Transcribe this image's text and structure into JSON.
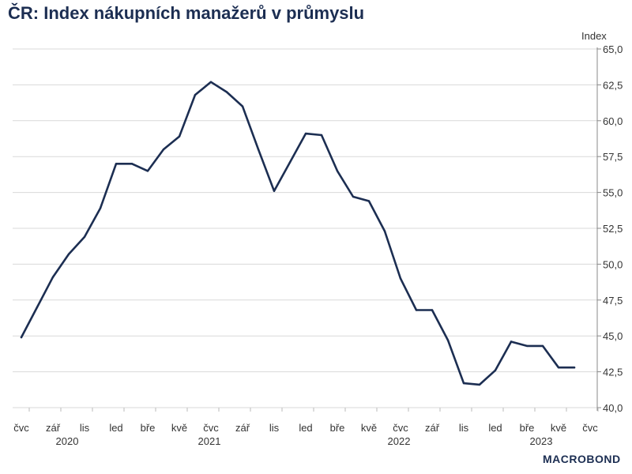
{
  "title": "ČR: Index nákupních manažerů v průmyslu",
  "unit_label": "Index",
  "brand": "MACROBOND",
  "chart_data": {
    "type": "line",
    "ylim": [
      40.0,
      65.0
    ],
    "yticks": [
      "40,0",
      "42,5",
      "45,0",
      "47,5",
      "50,0",
      "52,5",
      "55,0",
      "57,5",
      "60,0",
      "62,5",
      "65,0"
    ],
    "ytick_values": [
      40.0,
      42.5,
      45.0,
      47.5,
      50.0,
      52.5,
      55.0,
      57.5,
      60.0,
      62.5,
      65.0
    ],
    "x": [
      "2020-07",
      "2020-08",
      "2020-09",
      "2020-10",
      "2020-11",
      "2020-12",
      "2021-01",
      "2021-02",
      "2021-03",
      "2021-04",
      "2021-05",
      "2021-06",
      "2021-07",
      "2021-08",
      "2021-09",
      "2021-10",
      "2021-11",
      "2021-12",
      "2022-01",
      "2022-02",
      "2022-03",
      "2022-04",
      "2022-05",
      "2022-06",
      "2022-07",
      "2022-08",
      "2022-09",
      "2022-10",
      "2022-11",
      "2022-12",
      "2023-01",
      "2023-02",
      "2023-03",
      "2023-04",
      "2023-05",
      "2023-06"
    ],
    "values": [
      44.9,
      47.0,
      49.1,
      50.7,
      51.9,
      53.9,
      57.0,
      57.0,
      56.5,
      58.0,
      58.9,
      61.8,
      62.7,
      62.0,
      61.0,
      58.0,
      55.1,
      57.1,
      59.1,
      59.0,
      56.5,
      54.7,
      54.4,
      52.3,
      49.0,
      46.8,
      46.8,
      44.7,
      41.7,
      41.6,
      42.6,
      44.6,
      44.3,
      44.3,
      42.8,
      42.8
    ],
    "xticks": [
      {
        "label": "čvc",
        "month": "2020-07"
      },
      {
        "label": "zář",
        "month": "2020-09"
      },
      {
        "label": "lis",
        "month": "2020-11"
      },
      {
        "label": "led",
        "month": "2021-01"
      },
      {
        "label": "bře",
        "month": "2021-03"
      },
      {
        "label": "kvě",
        "month": "2021-05"
      },
      {
        "label": "čvc",
        "month": "2021-07"
      },
      {
        "label": "zář",
        "month": "2021-09"
      },
      {
        "label": "lis",
        "month": "2021-11"
      },
      {
        "label": "led",
        "month": "2022-01"
      },
      {
        "label": "bře",
        "month": "2022-03"
      },
      {
        "label": "kvě",
        "month": "2022-05"
      },
      {
        "label": "čvc",
        "month": "2022-07"
      },
      {
        "label": "zář",
        "month": "2022-09"
      },
      {
        "label": "lis",
        "month": "2022-11"
      },
      {
        "label": "led",
        "month": "2023-01"
      },
      {
        "label": "bře",
        "month": "2023-03"
      },
      {
        "label": "kvě",
        "month": "2023-05"
      },
      {
        "label": "čvc",
        "month": "2023-07"
      }
    ],
    "year_labels": [
      {
        "label": "2020",
        "month": "2020-10"
      },
      {
        "label": "2021",
        "month": "2021-07"
      },
      {
        "label": "2022",
        "month": "2022-07"
      },
      {
        "label": "2023",
        "month": "2023-04"
      }
    ],
    "grid": true,
    "line_color": "#1c2e52",
    "title_color": "#1c2e52"
  }
}
